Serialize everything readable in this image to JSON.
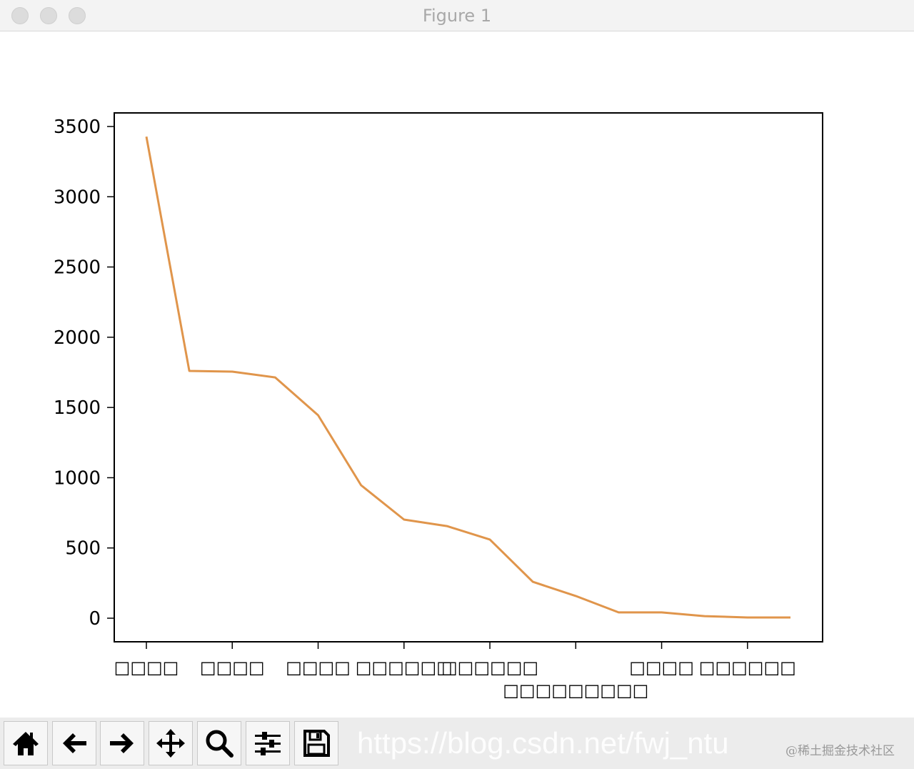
{
  "window": {
    "title": "Figure 1"
  },
  "chart_data": {
    "type": "line",
    "x": [
      0,
      1,
      2,
      3,
      4,
      5,
      6,
      7,
      8,
      9,
      10,
      11,
      12,
      13,
      14,
      15
    ],
    "values": [
      3428,
      1760,
      1755,
      1714,
      1445,
      946,
      702,
      656,
      560,
      259,
      158,
      41,
      41,
      15,
      5,
      5
    ],
    "color": "#e0954b",
    "ylim": [
      -170,
      3600
    ],
    "yticks": [
      0,
      500,
      1000,
      1500,
      2000,
      2500,
      3000,
      3500
    ],
    "ytick_labels": [
      "0",
      "500",
      "1000",
      "1500",
      "2000",
      "2500",
      "3000",
      "3500"
    ],
    "xticks": [
      0,
      2,
      4,
      6,
      8,
      10,
      12,
      14
    ],
    "xtick_labels": [
      "□□□□",
      "□□□□",
      "□□□□",
      "□□□□□□",
      "□□□□□□",
      "□□□□□□□□□",
      "□□□□",
      "□□□□□□"
    ],
    "grid": false
  },
  "toolbar": {
    "buttons": [
      "home",
      "back",
      "forward",
      "pan",
      "zoom",
      "configure-subplots",
      "save"
    ]
  },
  "watermarks": {
    "url": "https://blog.csdn.net/fwj_ntu",
    "site": "@稀土掘金技术社区"
  }
}
